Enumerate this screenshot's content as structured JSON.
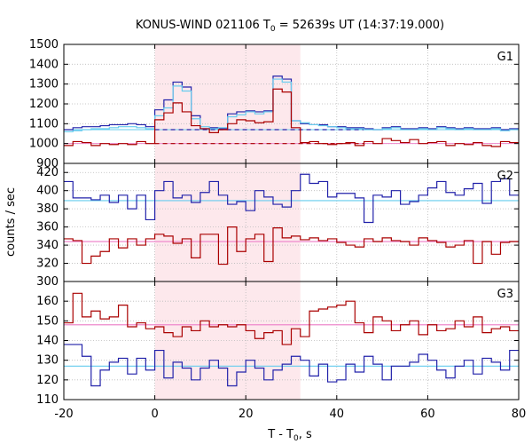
{
  "chart_data": {
    "type": "line",
    "title_main": "KONUS-WIND 021106 T",
    "title_sub": "0",
    "title_rest": " = 52639s UT (14:37:19.000)",
    "xlabel_main": "T - T",
    "xlabel_sub": "0",
    "xlabel_rest": ", s",
    "ylabel": "counts / sec",
    "xlim": [
      -20,
      80
    ],
    "xticks": [
      "-20",
      "0",
      "20",
      "40",
      "60",
      "80"
    ],
    "xtick_values": [
      -20,
      0,
      20,
      40,
      60,
      80
    ],
    "shaded_interval": [
      0,
      32
    ],
    "colors": {
      "blue": "#2222aa",
      "red": "#aa0000",
      "cyan": "#66ccee",
      "pink": "#ee88cc",
      "shade": "#fde8ec",
      "grid": "#bbbbbb"
    },
    "panels": [
      {
        "name": "G1",
        "ylim": [
          900,
          1500
        ],
        "yticks": [
          "900",
          "1000",
          "1100",
          "1200",
          "1300",
          "1400",
          "1500"
        ],
        "ytick_values": [
          900,
          1000,
          1100,
          1200,
          1300,
          1400,
          1500
        ],
        "bg_blue": 1070,
        "bg_red": 1000,
        "dashed_blue": 1070,
        "dashed_red": 1000,
        "series": [
          {
            "color": "blue",
            "edges": [
              -20,
              -18,
              -16,
              -14,
              -12,
              -10,
              -8,
              -6,
              -4,
              -2,
              0,
              2,
              4,
              6,
              8,
              10,
              12,
              14,
              16,
              18,
              20,
              22,
              24,
              26,
              28,
              30,
              32,
              34,
              36,
              38,
              40,
              42,
              44,
              46,
              48,
              50,
              52,
              54,
              56,
              58,
              60,
              62,
              64,
              66,
              68,
              70,
              72,
              74,
              76,
              78,
              80
            ],
            "values": [
              1070,
              1080,
              1085,
              1085,
              1090,
              1095,
              1095,
              1100,
              1095,
              1085,
              1170,
              1220,
              1310,
              1285,
              1140,
              1075,
              1080,
              1075,
              1150,
              1160,
              1165,
              1160,
              1165,
              1340,
              1325,
              1115,
              1100,
              1095,
              1095,
              1085,
              1085,
              1080,
              1080,
              1075,
              1070,
              1080,
              1085,
              1075,
              1075,
              1080,
              1075,
              1085,
              1080,
              1075,
              1080,
              1075,
              1075,
              1080,
              1070,
              1075
            ]
          },
          {
            "color": "cyan",
            "edges": [
              -20,
              -18,
              -16,
              -14,
              -12,
              -10,
              -8,
              -6,
              -4,
              -2,
              0,
              2,
              4,
              6,
              8,
              10,
              12,
              14,
              16,
              18,
              20,
              22,
              24,
              26,
              28,
              30,
              32,
              34,
              36,
              38,
              40,
              42,
              44,
              46,
              48,
              50,
              52,
              54,
              56,
              58,
              60,
              62,
              64,
              66,
              68,
              70,
              72,
              74,
              76,
              78,
              80
            ],
            "values": [
              1060,
              1065,
              1070,
              1075,
              1075,
              1080,
              1085,
              1085,
              1080,
              1075,
              1140,
              1180,
              1290,
              1265,
              1125,
              1085,
              1075,
              1080,
              1135,
              1145,
              1160,
              1150,
              1160,
              1325,
              1310,
              1115,
              1105,
              1095,
              1090,
              1085,
              1080,
              1075,
              1075,
              1070,
              1070,
              1075,
              1080,
              1070,
              1070,
              1075,
              1070,
              1080,
              1075,
              1070,
              1075,
              1070,
              1070,
              1075,
              1065,
              1070
            ]
          },
          {
            "color": "red",
            "edges": [
              -20,
              -18,
              -16,
              -14,
              -12,
              -10,
              -8,
              -6,
              -4,
              -2,
              0,
              2,
              4,
              6,
              8,
              10,
              12,
              14,
              16,
              18,
              20,
              22,
              24,
              26,
              28,
              30,
              32,
              34,
              36,
              38,
              40,
              42,
              44,
              46,
              48,
              50,
              52,
              54,
              56,
              58,
              60,
              62,
              64,
              66,
              68,
              70,
              72,
              74,
              76,
              78,
              80
            ],
            "values": [
              990,
              1010,
              1005,
              990,
              1000,
              995,
              1000,
              995,
              1010,
              1000,
              1120,
              1155,
              1205,
              1160,
              1090,
              1075,
              1055,
              1070,
              1100,
              1120,
              1115,
              1105,
              1110,
              1275,
              1260,
              1080,
              1005,
              1010,
              1000,
              995,
              1000,
              1005,
              990,
              1010,
              1000,
              1025,
              1015,
              1005,
              1020,
              1000,
              1005,
              1010,
              990,
              1000,
              995,
              1005,
              990,
              985,
              1010,
              1005
            ]
          }
        ]
      },
      {
        "name": "G2",
        "ylim": [
          300,
          430
        ],
        "yticks": [
          "300",
          "320",
          "340",
          "360",
          "380",
          "400",
          "420"
        ],
        "ytick_values": [
          300,
          320,
          340,
          360,
          380,
          400,
          420
        ],
        "bg_blue": 389,
        "bg_red": 344,
        "series": [
          {
            "color": "cyan",
            "edges": [
              -20,
              80
            ],
            "values": [
              389
            ]
          },
          {
            "color": "pink",
            "edges": [
              -20,
              80
            ],
            "values": [
              344
            ]
          },
          {
            "color": "blue",
            "edges": [
              -20,
              -18,
              -16,
              -14,
              -12,
              -10,
              -8,
              -6,
              -4,
              -2,
              0,
              2,
              4,
              6,
              8,
              10,
              12,
              14,
              16,
              18,
              20,
              22,
              24,
              26,
              28,
              30,
              32,
              34,
              36,
              38,
              40,
              42,
              44,
              46,
              48,
              50,
              52,
              54,
              56,
              58,
              60,
              62,
              64,
              66,
              68,
              70,
              72,
              74,
              76,
              78,
              80
            ],
            "values": [
              410,
              392,
              392,
              390,
              395,
              387,
              395,
              380,
              395,
              368,
              400,
              410,
              392,
              395,
              387,
              398,
              410,
              395,
              385,
              388,
              378,
              400,
              393,
              385,
              382,
              400,
              418,
              408,
              410,
              393,
              397,
              397,
              392,
              365,
              395,
              393,
              400,
              385,
              388,
              395,
              403,
              410,
              398,
              395,
              402,
              408,
              386,
              410,
              413,
              395
            ]
          },
          {
            "color": "red",
            "edges": [
              -20,
              -18,
              -16,
              -14,
              -12,
              -10,
              -8,
              -6,
              -4,
              -2,
              0,
              2,
              4,
              6,
              8,
              10,
              12,
              14,
              16,
              18,
              20,
              22,
              24,
              26,
              28,
              30,
              32,
              34,
              36,
              38,
              40,
              42,
              44,
              46,
              48,
              50,
              52,
              54,
              56,
              58,
              60,
              62,
              64,
              66,
              68,
              70,
              72,
              74,
              76,
              78,
              80
            ],
            "values": [
              347,
              345,
              320,
              328,
              333,
              347,
              337,
              347,
              340,
              347,
              352,
              350,
              342,
              347,
              326,
              352,
              352,
              319,
              360,
              333,
              347,
              352,
              322,
              359,
              348,
              350,
              346,
              348,
              345,
              347,
              343,
              340,
              338,
              347,
              344,
              348,
              345,
              344,
              340,
              348,
              345,
              343,
              338,
              340,
              345,
              320,
              344,
              330,
              343,
              344
            ]
          }
        ]
      },
      {
        "name": "G3",
        "ylim": [
          110,
          170
        ],
        "yticks": [
          "110",
          "120",
          "130",
          "140",
          "150",
          "160"
        ],
        "ytick_values": [
          110,
          120,
          130,
          140,
          150,
          160
        ],
        "bg_blue": 127,
        "bg_red": 148,
        "series": [
          {
            "color": "cyan",
            "edges": [
              -20,
              80
            ],
            "values": [
              127
            ]
          },
          {
            "color": "pink",
            "edges": [
              -20,
              80
            ],
            "values": [
              148
            ]
          },
          {
            "color": "blue",
            "edges": [
              -20,
              -18,
              -16,
              -14,
              -12,
              -10,
              -8,
              -6,
              -4,
              -2,
              0,
              2,
              4,
              6,
              8,
              10,
              12,
              14,
              16,
              18,
              20,
              22,
              24,
              26,
              28,
              30,
              32,
              34,
              36,
              38,
              40,
              42,
              44,
              46,
              48,
              50,
              52,
              54,
              56,
              58,
              60,
              62,
              64,
              66,
              68,
              70,
              72,
              74,
              76,
              78,
              80
            ],
            "values": [
              138,
              138,
              132,
              117,
              125,
              129,
              131,
              123,
              131,
              125,
              135,
              121,
              129,
              126,
              120,
              126,
              130,
              126,
              117,
              124,
              130,
              126,
              120,
              125,
              128,
              132,
              130,
              122,
              128,
              119,
              120,
              128,
              124,
              132,
              128,
              120,
              127,
              127,
              129,
              133,
              130,
              125,
              121,
              127,
              130,
              123,
              131,
              129,
              125,
              135
            ]
          },
          {
            "color": "red",
            "edges": [
              -20,
              -18,
              -16,
              -14,
              -12,
              -10,
              -8,
              -6,
              -4,
              -2,
              0,
              2,
              4,
              6,
              8,
              10,
              12,
              14,
              16,
              18,
              20,
              22,
              24,
              26,
              28,
              30,
              32,
              34,
              36,
              38,
              40,
              42,
              44,
              46,
              48,
              50,
              52,
              54,
              56,
              58,
              60,
              62,
              64,
              66,
              68,
              70,
              72,
              74,
              76,
              78,
              80
            ],
            "values": [
              149,
              164,
              152,
              155,
              151,
              152,
              158,
              147,
              149,
              146,
              147,
              144,
              142,
              147,
              145,
              150,
              147,
              148,
              147,
              148,
              145,
              141,
              144,
              145,
              138,
              146,
              142,
              155,
              156,
              157,
              158,
              160,
              149,
              144,
              152,
              150,
              145,
              148,
              150,
              143,
              148,
              145,
              146,
              150,
              147,
              152,
              144,
              146,
              147,
              145
            ]
          }
        ]
      }
    ]
  }
}
